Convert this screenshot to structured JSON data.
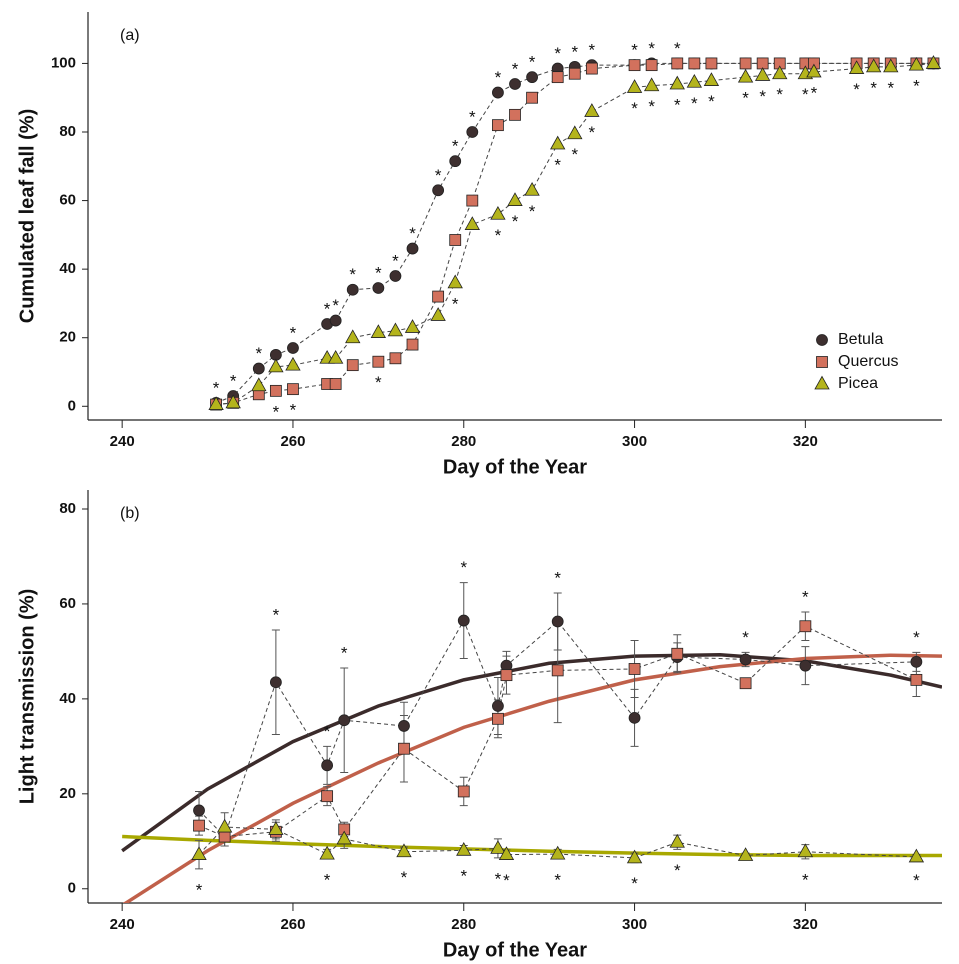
{
  "chart_data": [
    {
      "type": "line",
      "panel_label": "(a)",
      "xlabel": "Day of the Year",
      "ylabel": "Cumulated leaf fall (%)",
      "xlim": [
        236,
        336
      ],
      "ylim": [
        -4,
        115
      ],
      "xticks": [
        240,
        260,
        280,
        300,
        320
      ],
      "yticks": [
        0,
        20,
        40,
        60,
        80,
        100
      ],
      "legend": "lower right",
      "x": [
        251,
        253,
        256,
        258,
        260,
        264,
        265,
        267,
        270,
        272,
        274,
        277,
        279,
        281,
        284,
        286,
        288,
        291,
        293,
        295,
        300,
        302,
        305,
        307,
        309,
        313,
        315,
        317,
        320,
        321,
        326,
        328,
        330,
        333,
        335
      ],
      "series": [
        {
          "name": "Betula",
          "color": "#3d2f2f",
          "marker": "circle",
          "values": [
            1,
            3,
            11,
            15,
            17,
            24,
            25,
            34,
            34.5,
            38,
            46,
            63,
            71.5,
            80,
            91.5,
            94,
            96,
            98.5,
            99,
            99.5,
            99.5,
            100,
            100,
            100,
            100,
            100,
            100,
            100,
            100,
            100,
            100,
            100,
            100,
            100,
            100
          ]
        },
        {
          "name": "Quercus",
          "color": "#d2715d",
          "marker": "square",
          "values": [
            0.5,
            1,
            3.5,
            4.5,
            5,
            6.5,
            6.5,
            12,
            13,
            14,
            18,
            32,
            48.5,
            60,
            82,
            85,
            90,
            96,
            97,
            98.5,
            99.5,
            99.5,
            100,
            100,
            100,
            100,
            100,
            100,
            100,
            100,
            100,
            100,
            100,
            100,
            100
          ]
        },
        {
          "name": "Picea",
          "color": "#b4b41c",
          "marker": "triangle",
          "values": [
            0.5,
            1,
            6,
            11.5,
            12,
            14,
            14,
            20,
            21.5,
            22,
            23,
            26.5,
            36,
            53,
            56,
            60,
            63,
            76.5,
            79.5,
            86,
            93,
            93.5,
            94,
            94.5,
            95,
            96,
            96.5,
            97,
            97,
            97.5,
            98.5,
            99,
            99,
            99.5,
            100
          ]
        }
      ],
      "significance": {
        "text": "*",
        "above": [
          251,
          253,
          256,
          260,
          264,
          265,
          267,
          270,
          272,
          274,
          277,
          279,
          281,
          284,
          286,
          288,
          291,
          293,
          295,
          300,
          302,
          305
        ],
        "below": [
          258,
          260,
          270,
          279,
          284,
          286,
          288,
          291,
          293,
          295,
          300,
          302,
          305,
          307,
          309,
          313,
          315,
          317,
          320,
          321,
          326,
          328,
          330,
          333
        ]
      }
    },
    {
      "type": "line",
      "panel_label": "(b)",
      "xlabel": "Day of the Year",
      "ylabel": "Light transmission (%)",
      "xlim": [
        236,
        336
      ],
      "ylim": [
        -3,
        84
      ],
      "xticks": [
        240,
        260,
        280,
        300,
        320
      ],
      "yticks": [
        0,
        20,
        40,
        60,
        80
      ],
      "x": [
        249,
        252,
        258,
        264,
        266,
        273,
        280,
        284,
        285,
        291,
        300,
        305,
        313,
        320,
        333
      ],
      "series": [
        {
          "color": "#3d2f2f",
          "marker": "circle",
          "values": [
            16.5,
            11,
            43.5,
            26,
            35.5,
            34.3,
            56.5,
            38.5,
            47,
            56.3,
            36,
            48.8,
            48.3,
            47,
            47.8
          ],
          "errors": [
            4,
            2,
            11,
            4,
            11,
            5,
            8,
            6,
            3,
            6,
            6,
            3,
            1.5,
            4,
            2
          ]
        },
        {
          "color": "#d2715d",
          "marker": "square",
          "values": [
            13.3,
            11,
            12,
            19.5,
            12.5,
            29.5,
            20.5,
            35.8,
            45,
            46,
            46.3,
            49.5,
            43.3,
            55.3,
            44
          ],
          "errors": [
            2,
            2,
            2,
            2,
            1.5,
            7,
            3,
            4,
            4,
            11,
            6,
            4,
            1,
            3,
            3.5
          ]
        },
        {
          "color": "#b4b41c",
          "marker": "triangle",
          "values": [
            7.2,
            13,
            12.5,
            7.3,
            10.5,
            7.8,
            8.1,
            8.5,
            7.2,
            7.3,
            6.5,
            9.8,
            7,
            7.8,
            6.7
          ],
          "errors": [
            3,
            3,
            2,
            1,
            2,
            1,
            1,
            2,
            1,
            1,
            1,
            1.5,
            0.5,
            1.5,
            0.5
          ]
        }
      ],
      "fit_x": [
        240,
        250,
        260,
        270,
        280,
        290,
        300,
        310,
        320,
        330,
        336
      ],
      "fits": [
        {
          "color": "#3b2b2b",
          "values": [
            8,
            21,
            31,
            38.5,
            44,
            47.5,
            49,
            49.3,
            48,
            45,
            42.5
          ]
        },
        {
          "color": "#c0604a",
          "values": [
            -3.5,
            8,
            18,
            26.5,
            34,
            39.5,
            44,
            46.8,
            48.5,
            49.2,
            49
          ]
        },
        {
          "color": "#a8a800",
          "values": [
            11,
            10.2,
            9.5,
            8.9,
            8.4,
            7.9,
            7.5,
            7.2,
            7,
            7,
            7
          ]
        }
      ],
      "significance": {
        "text": "*",
        "above": [
          258,
          264,
          266,
          280,
          291,
          313,
          320,
          333
        ],
        "below": [
          249,
          264,
          273,
          280,
          284,
          285,
          291,
          300,
          305,
          320,
          333
        ]
      }
    }
  ]
}
